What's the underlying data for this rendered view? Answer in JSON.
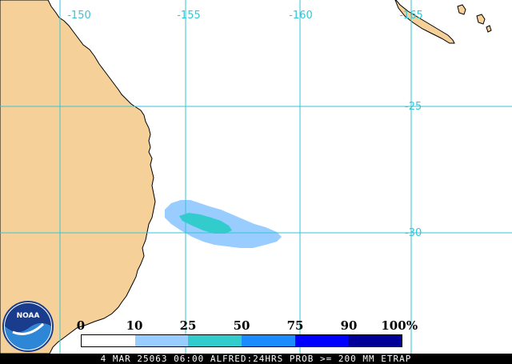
{
  "map": {
    "land_color": "#f5d199",
    "ocean_color": "#ffffff",
    "grid_color": "#34c6d6",
    "longitude_labels": [
      "-150",
      "-155",
      "-160",
      "-165"
    ],
    "latitude_labels": [
      "-25",
      "-30"
    ]
  },
  "legend": {
    "values": [
      "0",
      "10",
      "25",
      "50",
      "75",
      "90",
      "100"
    ],
    "unit": "%",
    "colors": [
      "#ffffff",
      "#99ccff",
      "#33cccc",
      "#1a8cff",
      "#0000ff",
      "#000099"
    ]
  },
  "footer": {
    "text": "4 MAR 25063 06:00 ALFRED:24HRS PROB >= 200 MM ETRAP"
  },
  "logo": {
    "text": "NOAA"
  }
}
